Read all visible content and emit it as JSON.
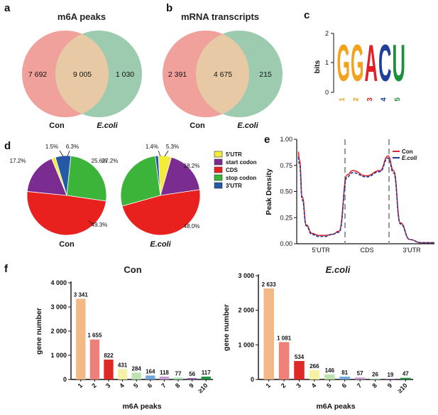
{
  "panels": {
    "a": "a",
    "b": "b",
    "c": "c",
    "d": "d",
    "e": "e",
    "f": "f"
  },
  "venn_a": {
    "title": "m6A peaks",
    "left_only": "7 692",
    "overlap": "9 005",
    "right_only": "1 030",
    "left_label": "Con",
    "right_label": "E.coli",
    "left_color": "#EE9089",
    "right_color": "#8CC2A1"
  },
  "venn_b": {
    "title": "mRNA transcripts",
    "left_only": "2 391",
    "overlap": "4 675",
    "right_only": "215",
    "left_label": "Con",
    "right_label": "E.coli"
  },
  "motif": {
    "letters": [
      "G",
      "G",
      "A",
      "C",
      "U"
    ],
    "positions": [
      "1",
      "2",
      "3",
      "4",
      "5"
    ],
    "ylabel": "bits",
    "yticks": [
      "0",
      "1",
      "2"
    ],
    "colors": {
      "G": "#F4A21C",
      "A": "#E21E26",
      "C": "#1F3F9A",
      "U": "#1B8F3A"
    }
  },
  "pie_con": {
    "label": "Con",
    "slice_labels": [
      "1.5%",
      "6.3%",
      "25.6%",
      "49.3%",
      "17.2%"
    ]
  },
  "pie_ecoli": {
    "label": "E.coli",
    "slice_labels": [
      "1.4%",
      "5.3%",
      "18.2%",
      "48.0%",
      "27.2%"
    ]
  },
  "pie_legend": [
    {
      "label": "5'UTR",
      "color": "#F4EB3A"
    },
    {
      "label": "start codon",
      "color": "#7B2C91"
    },
    {
      "label": "CDS",
      "color": "#E8211F"
    },
    {
      "label": "stop codon",
      "color": "#3CB43A"
    },
    {
      "label": "3'UTR",
      "color": "#2559A8"
    }
  ],
  "density": {
    "ylabel": "Peak Density",
    "yticks": [
      "0.00",
      "0.25",
      "0.50",
      "0.75",
      "1.00"
    ],
    "xticks": [
      "5'UTR",
      "CDS",
      "3'UTR"
    ],
    "legend": [
      {
        "label": "Con",
        "color": "#E0262B"
      },
      {
        "label": "E.coli",
        "color": "#1F3B95"
      }
    ]
  },
  "chart_data": [
    {
      "type": "pie",
      "title": "Con",
      "categories": [
        "5'UTR",
        "start codon",
        "CDS",
        "stop codon",
        "3'UTR"
      ],
      "values": [
        1.5,
        17.2,
        49.3,
        25.6,
        6.3
      ]
    },
    {
      "type": "pie",
      "title": "E.coli",
      "categories": [
        "5'UTR",
        "start codon",
        "CDS",
        "stop codon",
        "3'UTR"
      ],
      "values": [
        5.3,
        18.2,
        48.0,
        27.2,
        1.4
      ]
    },
    {
      "type": "line",
      "ylabel": "Peak Density",
      "ylim": [
        0,
        1
      ],
      "x": [
        0,
        0.01,
        0.03,
        0.06,
        0.1,
        0.15,
        0.2,
        0.25,
        0.3,
        0.36,
        0.4,
        0.5,
        0.6,
        0.66,
        0.7,
        0.75,
        0.82,
        0.9,
        0.95,
        1.0
      ],
      "series": [
        {
          "name": "Con",
          "values": [
            0.88,
            0.8,
            0.45,
            0.18,
            0.1,
            0.08,
            0.08,
            0.09,
            0.12,
            0.66,
            0.7,
            0.65,
            0.7,
            0.84,
            0.7,
            0.2,
            0.04,
            0.01,
            0.01,
            0.01
          ]
        },
        {
          "name": "E.coli",
          "values": [
            0.83,
            0.76,
            0.42,
            0.17,
            0.09,
            0.07,
            0.07,
            0.09,
            0.11,
            0.64,
            0.68,
            0.64,
            0.69,
            0.82,
            0.68,
            0.19,
            0.04,
            0.01,
            0.01,
            0.01
          ]
        }
      ]
    },
    {
      "type": "bar",
      "title": "Con",
      "xlabel": "m6A peaks",
      "ylabel": "gene number",
      "categories": [
        "1",
        "2",
        "3",
        "4",
        "5",
        "6",
        "7",
        "8",
        "9",
        "≥10"
      ],
      "values": [
        3341,
        1655,
        822,
        431,
        284,
        164,
        118,
        77,
        56,
        117
      ],
      "value_labels": [
        "3 341",
        "1 655",
        "822",
        "431",
        "284",
        "164",
        "118",
        "77",
        "56",
        "117"
      ],
      "ylim": [
        0,
        4000
      ],
      "yticks": [
        "0",
        "1 000",
        "2 000",
        "3 000",
        "4 000"
      ]
    },
    {
      "type": "bar",
      "title": "E.coli",
      "xlabel": "m6A peaks",
      "ylabel": "gene number",
      "categories": [
        "1",
        "2",
        "3",
        "4",
        "5",
        "6",
        "7",
        "8",
        "9",
        "≥10"
      ],
      "values": [
        2633,
        1081,
        534,
        266,
        146,
        81,
        57,
        26,
        19,
        47
      ],
      "value_labels": [
        "2 633",
        "1 081",
        "534",
        "266",
        "146",
        "81",
        "57",
        "26",
        "19",
        "47"
      ],
      "ylim": [
        0,
        3000
      ],
      "yticks": [
        "0",
        "1 000",
        "2 000",
        "3 000"
      ]
    }
  ],
  "bar_colors": [
    "#F2B885",
    "#EE8079",
    "#DD2A26",
    "#F6F2A6",
    "#BDE3B0",
    "#6FA7DC",
    "#C49BD0",
    "#A7DDB7",
    "#8E5BA8",
    "#1E8F3E"
  ]
}
